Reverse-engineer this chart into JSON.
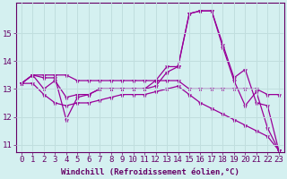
{
  "xlabel": "Windchill (Refroidissement éolien,°C)",
  "background_color": "#d4f0f0",
  "grid_color": "#b8e0e0",
  "line_color": "#990099",
  "x": [
    0,
    1,
    2,
    3,
    4,
    5,
    6,
    7,
    8,
    9,
    10,
    11,
    12,
    13,
    14,
    15,
    16,
    17,
    18,
    19,
    20,
    21,
    22,
    23
  ],
  "series1": [
    13.2,
    13.5,
    13.5,
    13.5,
    13.5,
    13.3,
    13.3,
    13.3,
    13.3,
    13.3,
    13.3,
    13.3,
    13.3,
    13.3,
    13.3,
    13.0,
    13.0,
    13.0,
    13.0,
    13.0,
    13.0,
    13.0,
    12.8,
    12.8
  ],
  "series2": [
    13.2,
    13.5,
    13.4,
    13.4,
    11.9,
    12.7,
    12.8,
    13.0,
    13.0,
    13.0,
    13.0,
    13.0,
    13.3,
    13.8,
    13.8,
    15.7,
    15.8,
    15.8,
    14.6,
    13.4,
    13.7,
    12.5,
    12.4,
    10.8
  ],
  "series3": [
    13.2,
    13.5,
    13.0,
    13.3,
    12.7,
    12.8,
    12.8,
    13.0,
    13.0,
    13.0,
    13.0,
    13.0,
    13.1,
    13.6,
    13.8,
    15.7,
    15.8,
    15.8,
    14.5,
    13.3,
    12.4,
    12.9,
    11.6,
    10.8
  ],
  "series4": [
    13.2,
    13.2,
    12.8,
    12.5,
    12.4,
    12.5,
    12.5,
    12.6,
    12.7,
    12.8,
    12.8,
    12.8,
    12.9,
    13.0,
    13.1,
    12.8,
    12.5,
    12.3,
    12.1,
    11.9,
    11.7,
    11.5,
    11.3,
    10.8
  ],
  "ylim": [
    10.75,
    16.1
  ],
  "yticks": [
    11,
    12,
    13,
    14,
    15
  ],
  "tick_fontsize": 6.5,
  "xlabel_fontsize": 6.5
}
